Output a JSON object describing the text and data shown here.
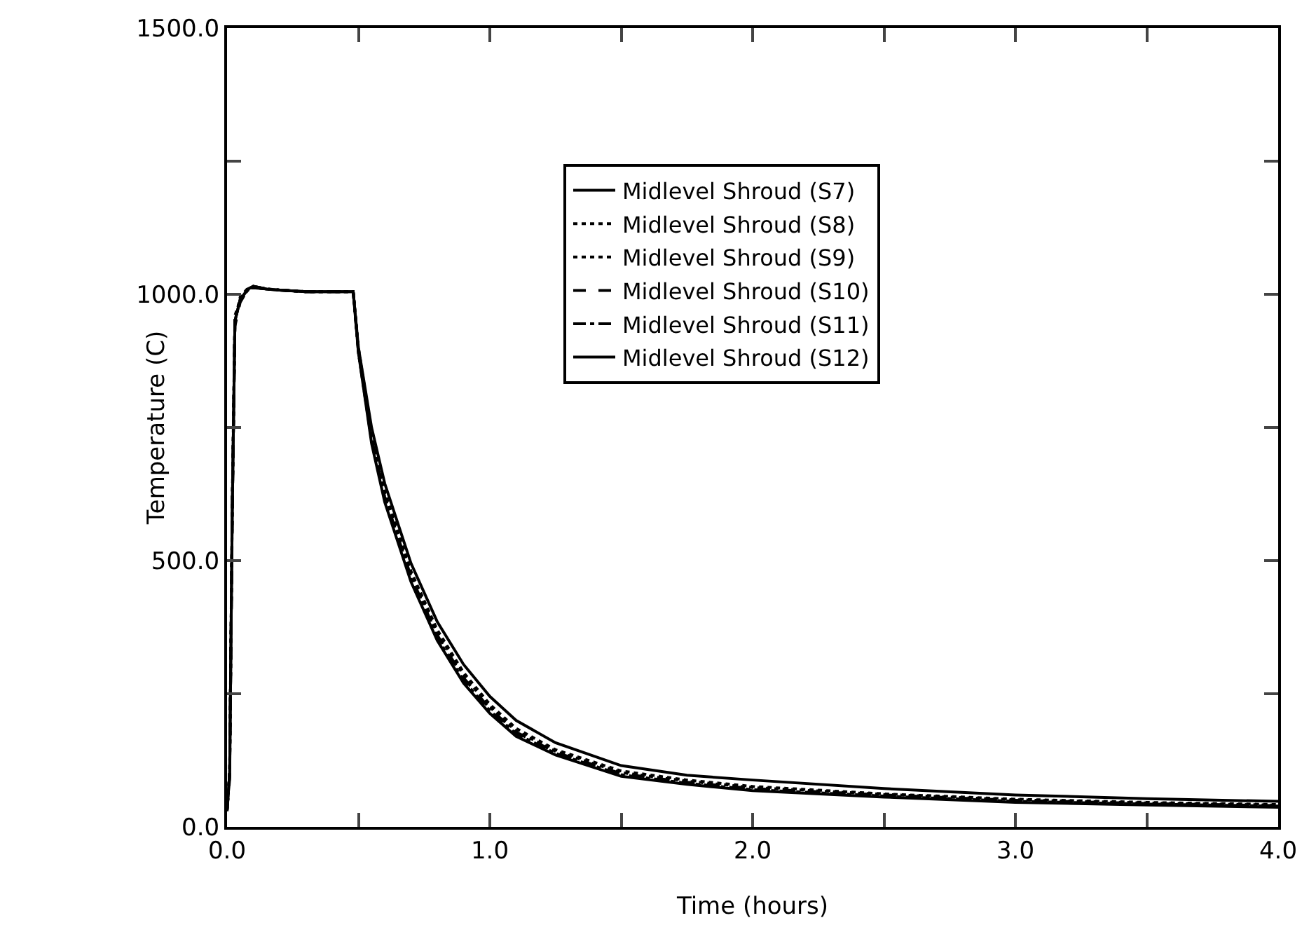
{
  "chart_data": {
    "type": "line",
    "xlabel": "Time (hours)",
    "ylabel": "Temperature (C)",
    "x": [
      0,
      0.01,
      0.02,
      0.03,
      0.05,
      0.08,
      0.1,
      0.15,
      0.2,
      0.3,
      0.4,
      0.48,
      0.5,
      0.55,
      0.6,
      0.7,
      0.8,
      0.9,
      1.0,
      1.1,
      1.25,
      1.5,
      1.75,
      2.0,
      2.5,
      3.0,
      3.5,
      4.0
    ],
    "series": [
      {
        "name": "Midlevel Shroud (S7)",
        "color": "#000000",
        "line_style": "solid",
        "values": [
          30,
          100,
          600,
          950,
          990,
          1010,
          1015,
          1010,
          1008,
          1005,
          1005,
          1005,
          900,
          750,
          645,
          495,
          385,
          305,
          245,
          200,
          158,
          115,
          97,
          88,
          72,
          60,
          53,
          48
        ]
      },
      {
        "name": "Midlevel Shroud (S8)",
        "color": "#000000",
        "line_style": "dotted",
        "values": [
          30,
          100,
          600,
          950,
          995,
          1012,
          1012,
          1010,
          1008,
          1005,
          1005,
          1005,
          900,
          740,
          630,
          480,
          370,
          290,
          230,
          185,
          145,
          105,
          88,
          76,
          62,
          52,
          46,
          42
        ]
      },
      {
        "name": "Midlevel Shroud (S9)",
        "color": "#000000",
        "line_style": "dotted",
        "values": [
          30,
          110,
          620,
          960,
          990,
          1008,
          1015,
          1010,
          1008,
          1005,
          1005,
          1005,
          895,
          735,
          625,
          475,
          365,
          285,
          225,
          180,
          142,
          102,
          86,
          74,
          61,
          51,
          45,
          41
        ]
      },
      {
        "name": "Midlevel Shroud (S10)",
        "color": "#000000",
        "line_style": "dashed",
        "values": [
          30,
          90,
          580,
          940,
          985,
          1010,
          1012,
          1010,
          1008,
          1005,
          1005,
          1005,
          895,
          730,
          620,
          470,
          360,
          280,
          222,
          178,
          140,
          100,
          84,
          72,
          60,
          50,
          44,
          40
        ]
      },
      {
        "name": "Midlevel Shroud (S11)",
        "color": "#000000",
        "line_style": "dashdot",
        "values": [
          30,
          100,
          600,
          950,
          990,
          1010,
          1015,
          1010,
          1008,
          1005,
          1005,
          1005,
          890,
          725,
          615,
          465,
          355,
          275,
          218,
          175,
          138,
          98,
          82,
          70,
          58,
          48,
          43,
          39
        ]
      },
      {
        "name": "Midlevel Shroud (S12)",
        "color": "#000000",
        "line_style": "solid",
        "values": [
          30,
          100,
          600,
          950,
          990,
          1010,
          1015,
          1010,
          1008,
          1005,
          1005,
          1005,
          890,
          720,
          610,
          460,
          350,
          270,
          213,
          170,
          135,
          95,
          80,
          68,
          56,
          46,
          41,
          37
        ]
      }
    ],
    "xlim": [
      0,
      4
    ],
    "xticks": [
      {
        "value": 0,
        "label": "0.0"
      },
      {
        "value": 0.5,
        "label": null
      },
      {
        "value": 1,
        "label": "1.0"
      },
      {
        "value": 1.5,
        "label": null
      },
      {
        "value": 2,
        "label": "2.0"
      },
      {
        "value": 2.5,
        "label": null
      },
      {
        "value": 3,
        "label": "3.0"
      },
      {
        "value": 3.5,
        "label": null
      },
      {
        "value": 4,
        "label": "4.0"
      }
    ],
    "ylim": [
      0,
      1500
    ],
    "yticks": [
      {
        "value": 0,
        "label": "0.0"
      },
      {
        "value": 250,
        "label": null
      },
      {
        "value": 500,
        "label": "500.0"
      },
      {
        "value": 750,
        "label": null
      },
      {
        "value": 1000,
        "label": "1000.0"
      },
      {
        "value": 1250,
        "label": null
      },
      {
        "value": 1500,
        "label": "1500.0"
      }
    ],
    "grid": false,
    "legend": "top",
    "marker": "none"
  }
}
